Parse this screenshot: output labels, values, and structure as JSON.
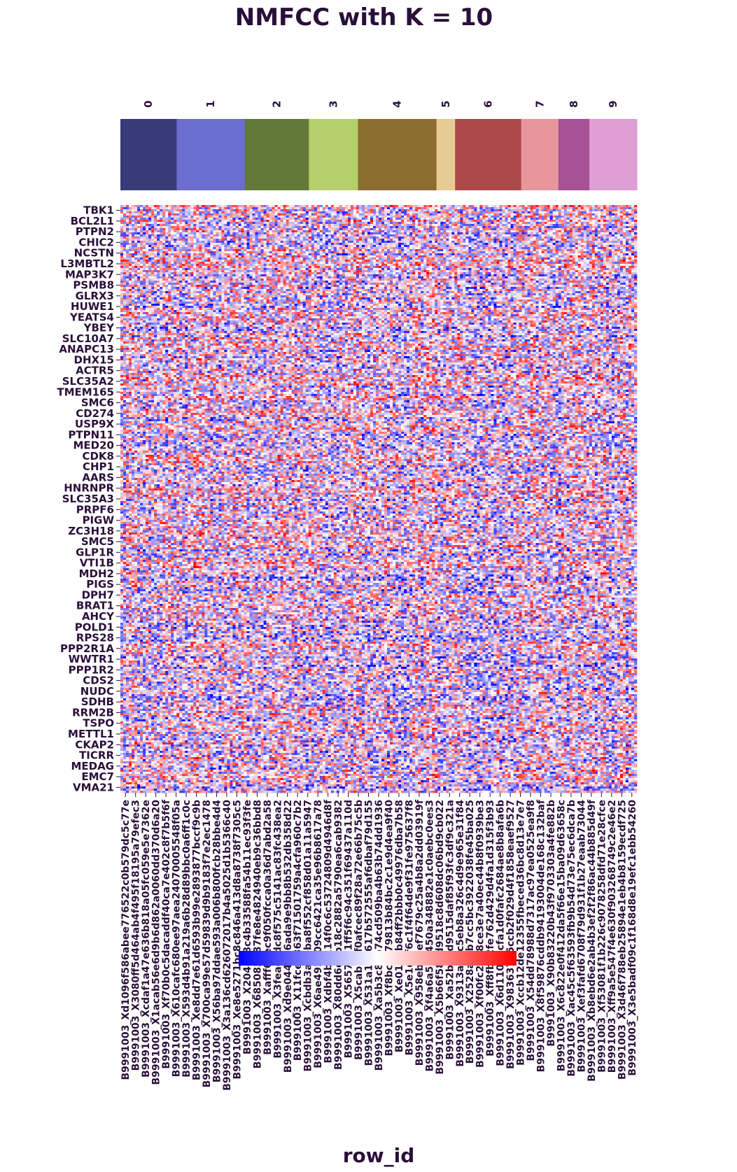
{
  "chart_data": {
    "type": "heatmap",
    "title": "NMFCC with K = 10",
    "xlabel": "row_id",
    "ylabel": "",
    "colormap": "bwr",
    "colorbar": {
      "stops": [
        "#0000ff",
        "#ffffff",
        "#ff0000"
      ]
    },
    "clusters": [
      {
        "label": "0",
        "color": "#393b79",
        "span": 0.109
      },
      {
        "label": "1",
        "color": "#6b6ecf",
        "span": 0.132
      },
      {
        "label": "2",
        "color": "#637939",
        "span": 0.124
      },
      {
        "label": "3",
        "color": "#b5cf6b",
        "span": 0.095
      },
      {
        "label": "4",
        "color": "#8c6d31",
        "span": 0.152
      },
      {
        "label": "5",
        "color": "#e7cb94",
        "span": 0.036
      },
      {
        "label": "6",
        "color": "#ad494a",
        "span": 0.128
      },
      {
        "label": "7",
        "color": "#e7969c",
        "span": 0.072
      },
      {
        "label": "8",
        "color": "#a55194",
        "span": 0.06
      },
      {
        "label": "9",
        "color": "#de9ed6",
        "span": 0.092
      }
    ],
    "row_labels": [
      "TBK1",
      "BCL2L1",
      "PTPN2",
      "CHIC2",
      "NCSTN",
      "L3MBTL2",
      "MAP3K7",
      "PSMB8",
      "GLRX3",
      "HUWE1",
      "YEATS4",
      "YBEY",
      "SLC10A7",
      "ANAPC13",
      "DHX15",
      "ACTR5",
      "SLC35A2",
      "TMEM165",
      "SMC6",
      "CD274",
      "USP9X",
      "PTPN11",
      "MED20",
      "CDK8",
      "CHP1",
      "AARS",
      "HNRNPR",
      "SLC35A3",
      "PRPF6",
      "PIGW",
      "ZC3H18",
      "SMC5",
      "GLP1R",
      "VTI1B",
      "MDH2",
      "PIGS",
      "DPH7",
      "BRAT1",
      "AHCY",
      "POLD1",
      "RPS28",
      "PPP2R1A",
      "WWTR1",
      "PPP1R2",
      "CDS2",
      "NUDC",
      "SDHB",
      "RRM2B",
      "TSPO",
      "METTL1",
      "CKAP2",
      "TICRR",
      "MEDAG",
      "EMC7",
      "VMA21"
    ],
    "column_labels": [
      "B9991003_Xd1096f586abee776522c0b579dc5c77e",
      "B9991003_X3080ff5d464ab4f495f18195a79efec3",
      "B9991003_Xcdaf1a47e636b818a05fc059e5e7362e",
      "B9991003_X1acab56e6d9b6d862a0060dd370d6a20",
      "B9991003_Xf70b0c5dacaddf40ca7e402c8f7b5f6f",
      "B9991003_X610cafc680ee97aea24070005548f05a",
      "B9991003_X593d4b91a219a6b28d89bbc0a6ff1c0c",
      "B9991003_Xe8dd7e61d6593b99e2893877bccf9c9b",
      "B9991003_X700ca99e57d59839d9b9183f7e2ec1478",
      "B9991003_X56ba97ddae593a006b800fcb28bbe4d4",
      "B9991003_X3a136cd626072017b4a5025d1b5366c40",
      "B9991003_Xe8e5271bc8c846a413d8a8738f7305c5",
      "B9991003_X204cd8c4b33588fa54b11ec93f3fe",
      "B9991003_X685085387fe8e4824940eb9c36bbd8",
      "B9991003_Xafff67ec9f050fcca0a36d7abd2a58",
      "B9991003_X3feac9dc8f575c5141ac83fc438ea2",
      "B9991003_Xd9e044356ada9e9bb8b532db358d22",
      "B9991003_X11fce3363f71501759a4cfa960c7b2",
      "B9991003_Xcbdb3a4eba8f552cf858d01a11a5947",
      "B9991003_X6ae495b09cc6421ca35e96b8617a78",
      "B9991003_Xdbf4b0114f0c6c53724809d4946d8f",
      "B9991003_X80dd6edb18c2882a5790ea6cab9382",
      "B9991003_X5657cd1ff5f6c94c351f69437a110d",
      "B9991003_X5cabb9f0afcec89f28a72e66b75c5b",
      "B9991003_X531a18c617b572555af6dbaf79d155",
      "B9991003_Xa5b3c8ab74cd509ba4b63b74dd1936",
      "B9991003_Xf8bc0c79813b84bc2c1e9d4ea9f40",
      "B9991003_Xe01b9b84ff2bbb0c49976dba7b58",
      "B9991003_X5e1d0f6c1f4f64de9f31fe975637f8",
      "B9991003_X958ebbaef7679c25a4b8a2dd03919f",
      "B9991003_Xf4a6a5a1450a348882e1c0aebc0ees3",
      "B9991003_X5b66f583d9518c8d608dc06bd9cb022",
      "B9991003_Xa52b10d9515daf85f93fc3df9c321a",
      "B9991003_X9313a28c5eb8a326c4d9e965e31f84",
      "B9991003_X2528a2fb7cc5bc3922038fe45ba025",
      "B9991003_Xf00fc26b8ce3e7a40ec44b8f0939be3",
      "B9991003_Xff8fbe2fe762d429d4fa1d315f3b93",
      "B9991003_X6d110edcfa1d0fafc2684ae8b8afa6b",
      "B9991003_X983637d5ccb2f029d4f1858eaef9527",
      "B9991003_Xccb12de12355fbeced36bc8d13e7e7",
      "B9991003_X54dd78988d7317ac97ea0525ea9f8",
      "B9991003_X8f59876cddb94193004de168c132baf",
      "B9991003_X90b83220b43f9703303a4fe882b",
      "B9991003_X6c822e0f412da5f66e15ba09d63658c",
      "B9991003_Xac45c5f63593fb9b54d73e75ec6dca7b",
      "B9991003_Xef3fafd6708f79d931f1b27eaab73044",
      "B9991003_Xb8ebd6e2ab4b3ef2f2f86ac44b885d49f",
      "B9991003_Xf53081f1b226c9078258dfd71e28cfce",
      "B9991003_Xff9a5e547f4e630f903268749c2e46e2",
      "B9991003_X3d46f788eb25894e1eb4b8159ecdf725",
      "B9991003_X3e5badf09c1f168d8e19efc1ebb54260"
    ]
  }
}
